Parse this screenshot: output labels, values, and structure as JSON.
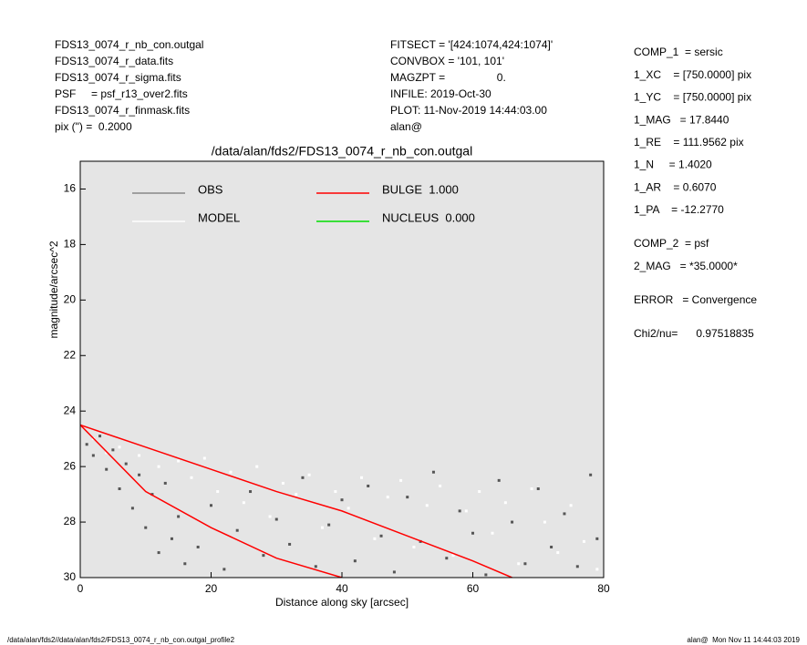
{
  "header": {
    "left": [
      "FDS13_0074_r_nb_con.outgal",
      "FDS13_0074_r_data.fits",
      "FDS13_0074_r_sigma.fits",
      "PSF     = psf_r13_over2.fits",
      "FDS13_0074_r_finmask.fits",
      "pix (\") =  0.2000"
    ],
    "middle": [
      "FITSECT = '[424:1074,424:1074]'",
      "CONVBOX = '101, 101'",
      "MAGZPT =                 0.",
      "INFILE: 2019-Oct-30",
      "PLOT: 11-Nov-2019 14:44:03.00",
      "alan@"
    ]
  },
  "params": [
    [
      "COMP_1  = sersic",
      "1_XC    = [750.0000] pix",
      "1_YC    = [750.0000] pix",
      "1_MAG   = 17.8440",
      "1_RE    = 111.9562 pix",
      "1_N     = 1.4020",
      "1_AR    = 0.6070",
      "1_PA    = -12.2770"
    ],
    [
      "COMP_2  = psf",
      "2_MAG   = *35.0000*"
    ],
    [
      "ERROR   = Convergence"
    ],
    [
      "Chi2/nu=      0.97518835"
    ]
  ],
  "footer": {
    "left": "/data/alan/fds2//data/alan/fds2/FDS13_0074_r_nb_con.outgal_profile2",
    "right": "alan@  Mon Nov 11 14:44:03 2019"
  },
  "chart_data": {
    "type": "scatter",
    "title": "/data/alan/fds2/FDS13_0074_r_nb_con.outgal",
    "xlabel": "Distance along sky [arcsec]",
    "ylabel": "magnitude/arcsec^2",
    "xlim": [
      0,
      80
    ],
    "xticks": [
      0,
      20,
      40,
      60,
      80
    ],
    "ylim": [
      30,
      15
    ],
    "yticks": [
      16,
      18,
      20,
      22,
      24,
      26,
      28,
      30
    ],
    "background": "#e5e5e5",
    "series": [
      {
        "name": "OBS",
        "color": "#555555",
        "legend_color": "#888888",
        "kind": "points",
        "x": [
          1,
          2,
          3,
          4,
          5,
          6,
          7,
          8,
          9,
          10,
          11,
          12,
          13,
          14,
          15,
          16,
          18,
          20,
          22,
          24,
          26,
          28,
          30,
          32,
          34,
          36,
          38,
          40,
          42,
          44,
          46,
          48,
          50,
          52,
          54,
          56,
          58,
          60,
          62,
          64,
          66,
          68,
          70,
          72,
          74,
          76,
          78,
          79
        ],
        "values": [
          25.2,
          25.6,
          24.9,
          26.1,
          25.4,
          26.8,
          25.9,
          27.5,
          26.3,
          28.2,
          27.0,
          29.1,
          26.6,
          28.6,
          27.8,
          29.5,
          28.9,
          27.4,
          29.7,
          28.3,
          26.9,
          29.2,
          27.9,
          28.8,
          26.4,
          29.6,
          28.1,
          27.2,
          29.4,
          26.7,
          28.5,
          29.8,
          27.1,
          28.7,
          26.2,
          29.3,
          27.6,
          28.4,
          29.9,
          26.5,
          28.0,
          29.5,
          26.8,
          28.9,
          27.7,
          29.6,
          26.3,
          28.6
        ]
      },
      {
        "name": "MODEL",
        "color": "#ffffff",
        "legend_color": "#ffffff",
        "kind": "points",
        "x": [
          2,
          4,
          6,
          9,
          12,
          15,
          17,
          19,
          21,
          23,
          25,
          27,
          29,
          31,
          33,
          35,
          37,
          39,
          41,
          43,
          45,
          47,
          49,
          51,
          53,
          55,
          57,
          59,
          61,
          63,
          65,
          67,
          69,
          71,
          73,
          75,
          77,
          79
        ],
        "values": [
          25.0,
          25.5,
          25.3,
          25.6,
          26.0,
          25.8,
          26.4,
          25.7,
          26.9,
          26.2,
          27.3,
          26.0,
          27.8,
          26.6,
          27.0,
          26.3,
          28.2,
          26.9,
          27.5,
          26.4,
          28.6,
          27.1,
          26.5,
          28.9,
          27.4,
          26.7,
          29.2,
          27.6,
          26.9,
          28.4,
          27.3,
          29.5,
          26.8,
          28.0,
          29.1,
          27.4,
          28.7,
          29.7
        ]
      },
      {
        "name": "BULGE  1.000",
        "color": "#ff0000",
        "legend_color": "#ff0000",
        "kind": "band",
        "x": [
          0,
          10,
          20,
          30,
          40,
          50,
          60,
          66
        ],
        "values": [
          24.5,
          25.3,
          26.1,
          26.9,
          27.6,
          28.5,
          29.4,
          30
        ],
        "values2": [
          24.5,
          26.9,
          28.2,
          29.3,
          30,
          null,
          null,
          null
        ]
      },
      {
        "name": "NUCLEUS  0.000",
        "color": "#00dd00",
        "legend_color": "#00dd00",
        "kind": "points",
        "x": [],
        "values": []
      }
    ]
  }
}
